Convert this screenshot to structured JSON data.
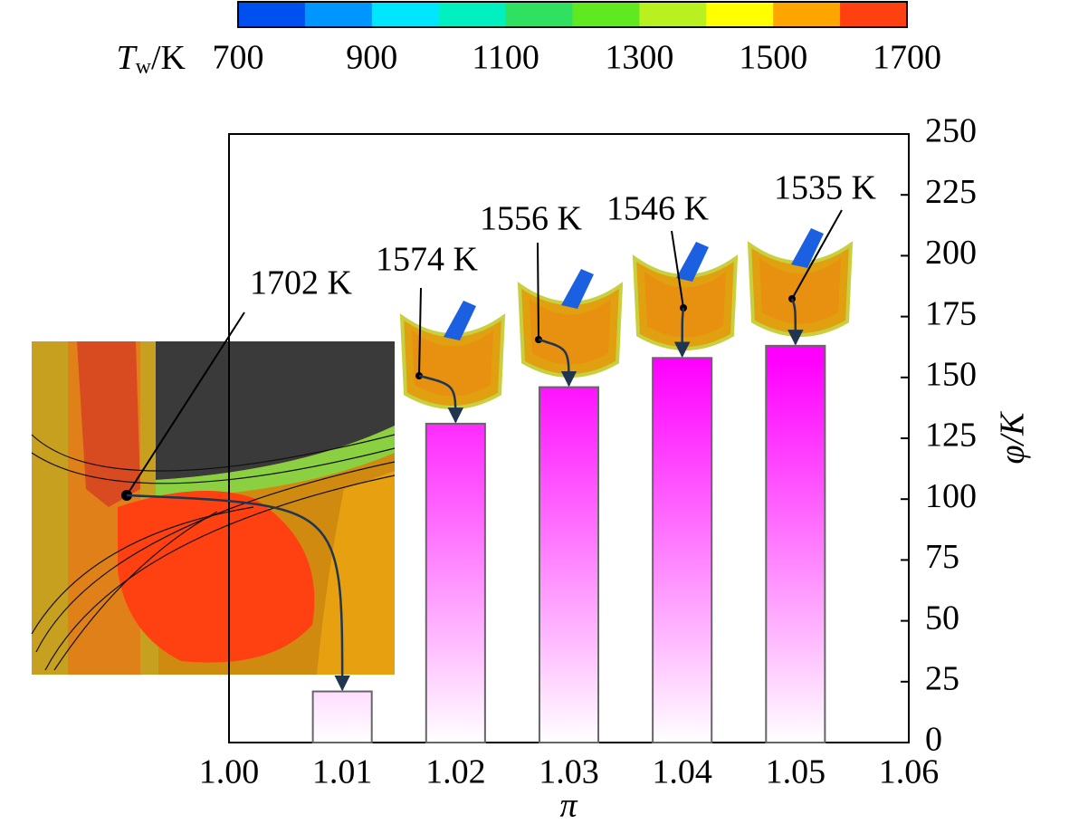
{
  "chart_data": {
    "type": "bar",
    "x": [
      1.01,
      1.02,
      1.03,
      1.04,
      1.05
    ],
    "values": [
      21,
      131,
      146,
      158,
      163
    ],
    "color": "#ff00ff",
    "xlabel": "π",
    "ylabel": "φ/K",
    "xlim": [
      1.0,
      1.06
    ],
    "xticks": [
      {
        "value": 1.0,
        "label": "1.00"
      },
      1.01,
      1.02,
      1.03,
      1.04,
      1.05,
      1.06
    ],
    "ylim": [
      0,
      250
    ],
    "yticks": [
      0,
      25,
      50,
      75,
      100,
      125,
      150,
      175,
      200,
      225,
      250
    ],
    "y_axis_side": "right",
    "annotations": [
      "1702 K",
      "1574 K",
      "1556 K",
      "1546 K",
      "1535 K"
    ],
    "colorbar": {
      "label": "T",
      "label_sub": "w",
      "label_suffix": "/K",
      "clim": [
        700,
        1700
      ],
      "ticks": [
        700,
        900,
        1100,
        1300,
        1500,
        1700
      ],
      "colors": [
        "#0050f0",
        "#0096ff",
        "#00e6ff",
        "#00f0c0",
        "#30e060",
        "#60e820",
        "#b8f020",
        "#ffff00",
        "#ffa500",
        "#ff4010"
      ]
    }
  }
}
